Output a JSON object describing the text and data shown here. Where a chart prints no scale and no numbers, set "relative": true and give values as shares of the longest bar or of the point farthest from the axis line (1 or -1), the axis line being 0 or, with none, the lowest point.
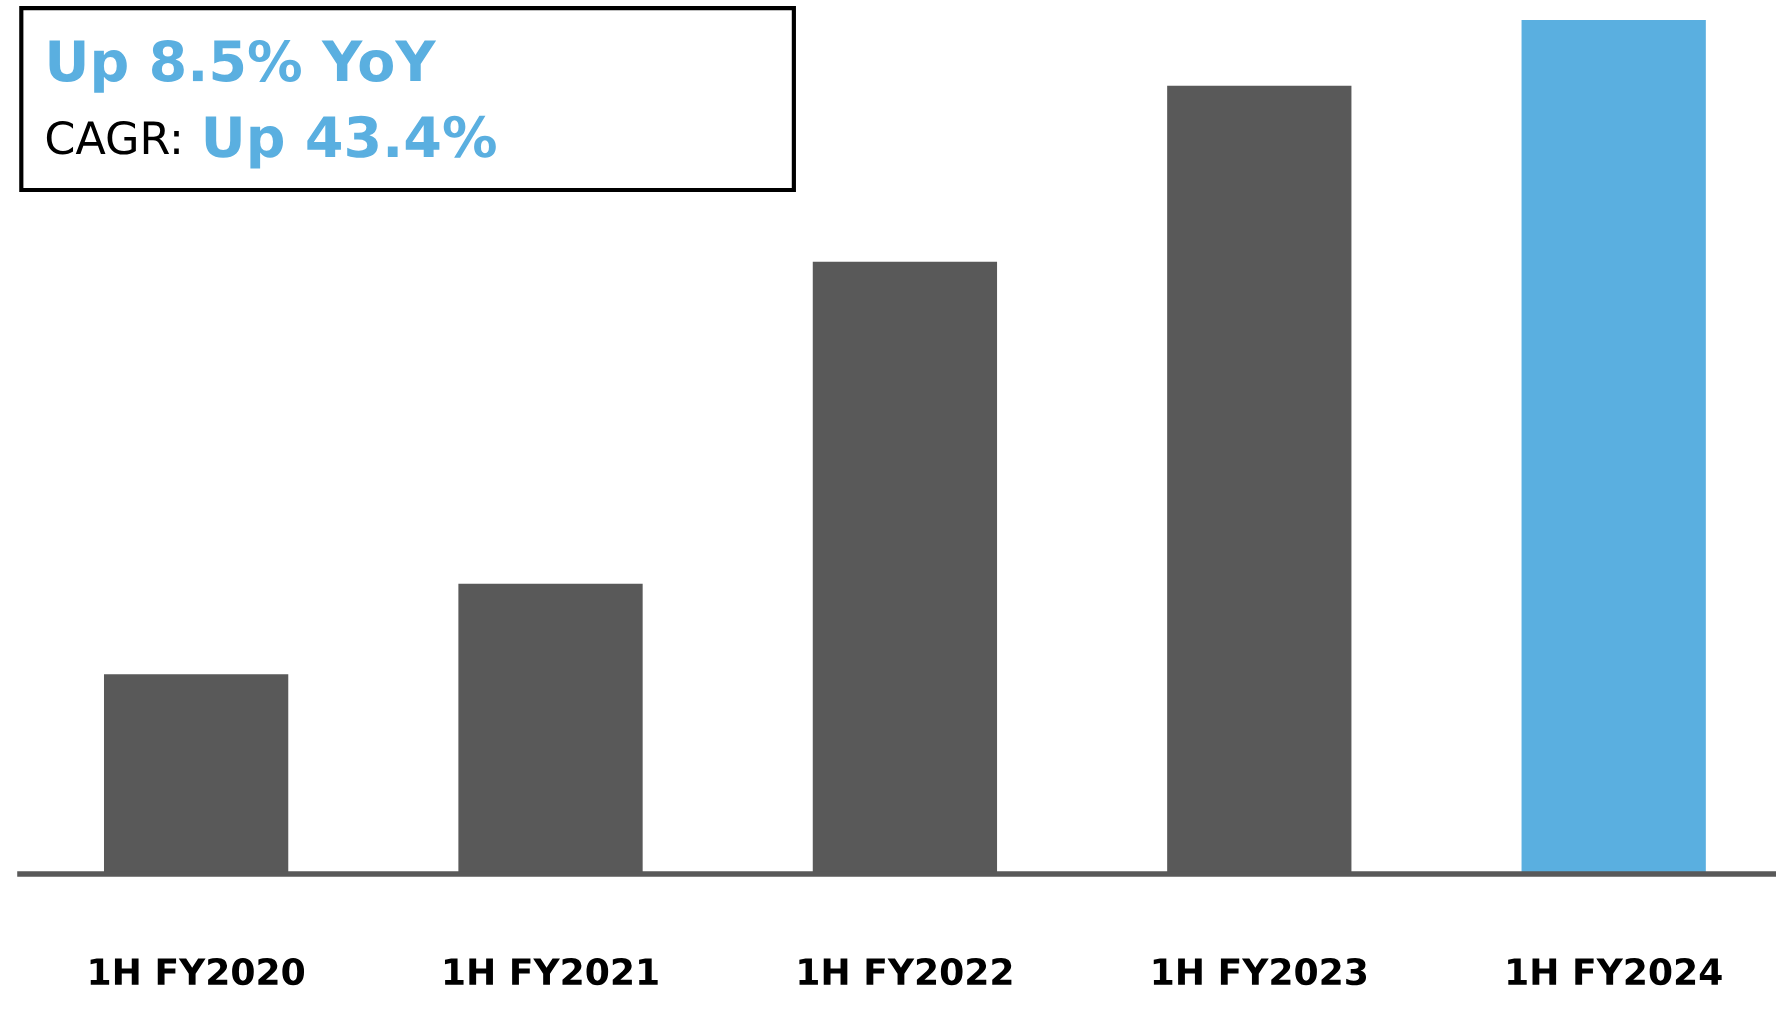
{
  "chart_data": {
    "type": "bar",
    "relative": true,
    "categories": [
      "1H FY2020",
      "1H FY2021",
      "1H FY2022",
      "1H FY2023",
      "1H FY2024"
    ],
    "values": [
      0.234,
      0.34,
      0.717,
      0.923,
      1
    ],
    "colors": [
      "#595959",
      "#595959",
      "#595959",
      "#595959",
      "#5aafe0"
    ],
    "annotations": [
      "Up 8.5% YoY",
      "CAGR:",
      "Up 43.4%"
    ],
    "grid": false,
    "legend": false
  }
}
